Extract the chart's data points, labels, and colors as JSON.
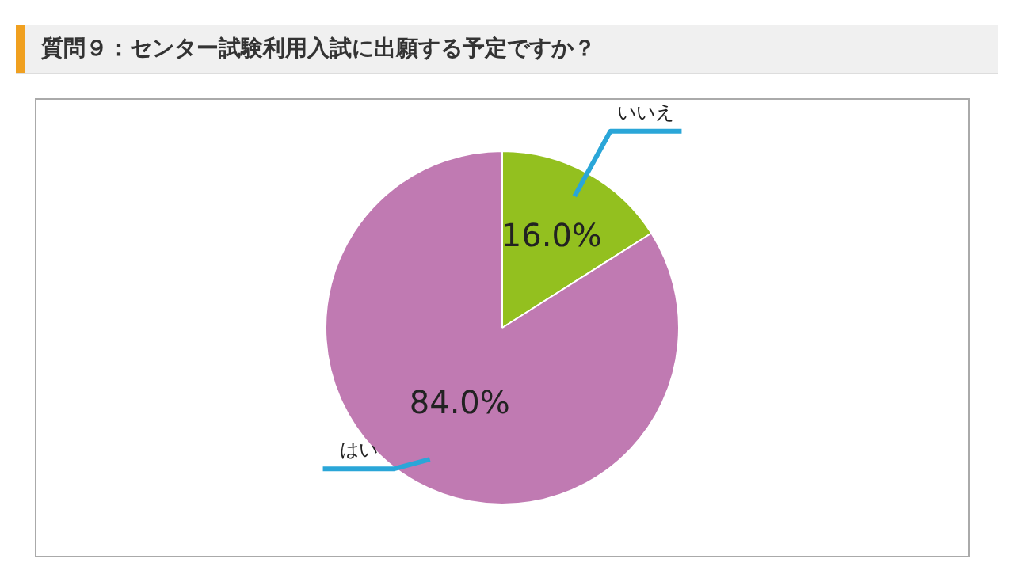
{
  "chart_data": {
    "type": "pie",
    "title": "質問９：センター試験利用入試に出願する予定ですか？",
    "categories": [
      "いいえ",
      "はい"
    ],
    "values": [
      16.0,
      84.0
    ],
    "colors": [
      "#93c01f",
      "#c07ab2"
    ],
    "value_labels": [
      "16.0%",
      "84.0%"
    ],
    "legend": false
  }
}
